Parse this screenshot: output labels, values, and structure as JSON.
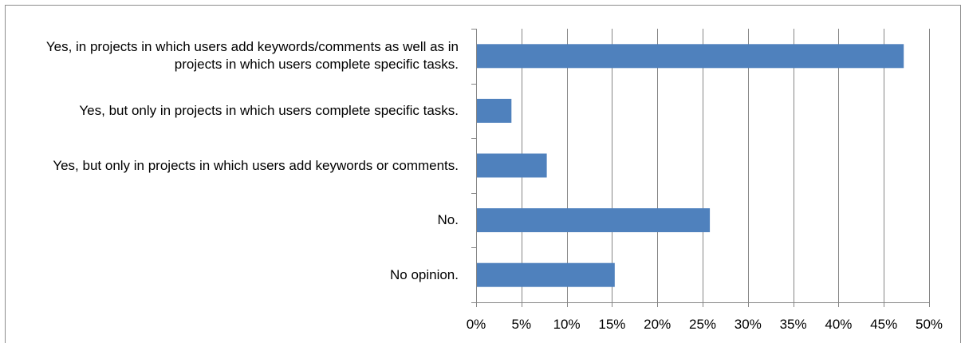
{
  "chart_data": {
    "type": "bar",
    "orientation": "horizontal",
    "title": "",
    "xlabel": "",
    "ylabel": "",
    "categories": [
      "Yes, in projects in which users add keywords/comments as well as in projects in which users complete specific tasks.",
      "Yes, but only in projects in which users complete specific tasks.",
      "Yes, but only in projects in which users add keywords or comments.",
      "No.",
      "No opinion."
    ],
    "values": [
      47.2,
      3.9,
      7.8,
      25.8,
      15.3
    ],
    "xlim": [
      0,
      50
    ],
    "xticks": [
      "0%",
      "5%",
      "10%",
      "15%",
      "20%",
      "25%",
      "30%",
      "35%",
      "40%",
      "45%",
      "50%"
    ],
    "grid": "vertical",
    "legend": "none",
    "bar_color": "#4F81BD",
    "gridline_color": "#868686"
  }
}
